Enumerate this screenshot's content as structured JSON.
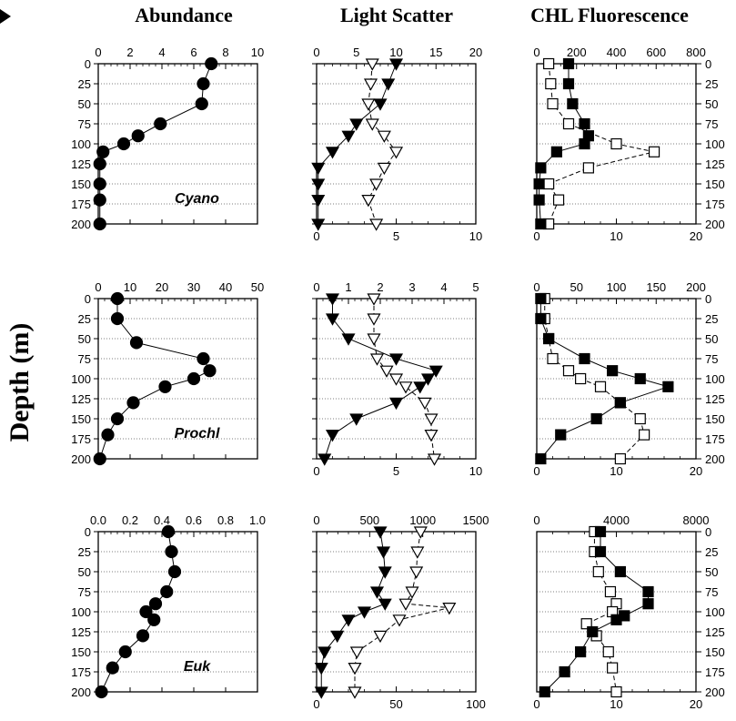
{
  "columns": [
    "Abundance",
    "Light Scatter",
    "CHL Fluorescence"
  ],
  "y_axis_label": "Depth (m)",
  "chart_data": [
    {
      "type": "scatter",
      "row": 0,
      "col": 0,
      "label": "Cyano",
      "xlim_top": [
        0,
        10
      ],
      "xticks_top": [
        "0",
        "2",
        "4",
        "6",
        "8",
        "10"
      ],
      "ylim": [
        200,
        0
      ],
      "yticks": [
        "0",
        "25",
        "50",
        "75",
        "100",
        "125",
        "150",
        "175",
        "200"
      ],
      "series": [
        {
          "marker": "circle-filled",
          "x": [
            7.1,
            6.6,
            6.5,
            3.9,
            2.5,
            1.6,
            0.3,
            0.1,
            0.1,
            0.1,
            0.1
          ],
          "y": [
            0,
            25,
            50,
            75,
            90,
            100,
            110,
            125,
            150,
            170,
            200
          ]
        }
      ]
    },
    {
      "type": "scatter",
      "row": 0,
      "col": 1,
      "xlim_top": [
        0,
        20
      ],
      "xticks_top": [
        "0",
        "5",
        "10",
        "15",
        "20"
      ],
      "xlim_bottom": [
        0,
        10
      ],
      "xticks_bottom": [
        "0",
        "5",
        "10"
      ],
      "ylim": [
        200,
        0
      ],
      "yticks": [
        "0",
        "25",
        "50",
        "75",
        "100",
        "125",
        "150",
        "175",
        "200"
      ],
      "series": [
        {
          "marker": "triangle-open",
          "axis": "top",
          "x": [
            7.0,
            6.8,
            6.5,
            7.0,
            8.5,
            10.0,
            8.5,
            7.5,
            6.5,
            7.5
          ],
          "y": [
            0,
            25,
            50,
            75,
            90,
            110,
            130,
            150,
            170,
            200
          ]
        },
        {
          "marker": "triangle-filled",
          "axis": "bottom",
          "x": [
            5.0,
            4.5,
            4.0,
            2.5,
            2.0,
            1.0,
            0.1,
            0.1,
            0.1,
            0.1
          ],
          "y": [
            0,
            25,
            50,
            75,
            90,
            110,
            130,
            150,
            170,
            200
          ]
        }
      ]
    },
    {
      "type": "scatter",
      "row": 0,
      "col": 2,
      "xlim_top": [
        0,
        800
      ],
      "xticks_top": [
        "0",
        "200",
        "400",
        "600",
        "800"
      ],
      "xlim_bottom": [
        0,
        20
      ],
      "xticks_bottom": [
        "0",
        "10",
        "20"
      ],
      "ylim": [
        200,
        0
      ],
      "yticks": [
        "0",
        "25",
        "50",
        "75",
        "100",
        "125",
        "150",
        "175",
        "200"
      ],
      "series": [
        {
          "marker": "square-open",
          "axis": "top",
          "x": [
            60,
            70,
            80,
            160,
            400,
            590,
            260,
            60,
            110,
            60
          ],
          "y": [
            0,
            25,
            50,
            75,
            100,
            110,
            130,
            150,
            170,
            200
          ]
        },
        {
          "marker": "square-filled",
          "axis": "bottom",
          "x": [
            4.0,
            4.0,
            4.5,
            6.0,
            6.5,
            6.0,
            2.5,
            0.5,
            0.3,
            0.3,
            0.5
          ],
          "y": [
            0,
            25,
            50,
            75,
            90,
            100,
            110,
            130,
            150,
            170,
            200
          ]
        }
      ]
    },
    {
      "type": "scatter",
      "row": 1,
      "col": 0,
      "label": "Prochl",
      "xlim_top": [
        0,
        50
      ],
      "xticks_top": [
        "0",
        "10",
        "20",
        "30",
        "40",
        "50"
      ],
      "ylim": [
        200,
        0
      ],
      "yticks": [
        "0",
        "25",
        "50",
        "75",
        "100",
        "125",
        "150",
        "175",
        "200"
      ],
      "series": [
        {
          "marker": "circle-filled",
          "x": [
            6,
            6,
            12,
            33,
            35,
            30,
            21,
            11,
            6,
            3,
            0.5
          ],
          "y": [
            0,
            25,
            55,
            75,
            90,
            100,
            110,
            130,
            150,
            170,
            200
          ]
        }
      ]
    },
    {
      "type": "scatter",
      "row": 1,
      "col": 1,
      "xlim_top": [
        0,
        5
      ],
      "xticks_top": [
        "0",
        "1",
        "2",
        "3",
        "4",
        "5"
      ],
      "xlim_bottom": [
        0,
        10
      ],
      "xticks_bottom": [
        "0",
        "5",
        "10"
      ],
      "ylim": [
        200,
        0
      ],
      "yticks": [
        "0",
        "25",
        "50",
        "75",
        "100",
        "125",
        "150",
        "175",
        "200"
      ],
      "series": [
        {
          "marker": "triangle-open",
          "axis": "top",
          "x": [
            1.8,
            1.8,
            1.8,
            1.9,
            2.2,
            2.5,
            2.8,
            3.4,
            3.6,
            3.6,
            3.7
          ],
          "y": [
            0,
            25,
            50,
            75,
            90,
            100,
            110,
            130,
            150,
            170,
            200
          ]
        },
        {
          "marker": "triangle-filled",
          "axis": "bottom",
          "x": [
            1.0,
            1.0,
            2.0,
            5.0,
            7.5,
            7.0,
            6.5,
            5.0,
            2.5,
            1.0,
            0.5
          ],
          "y": [
            0,
            25,
            50,
            75,
            90,
            100,
            110,
            130,
            150,
            170,
            200
          ]
        }
      ]
    },
    {
      "type": "scatter",
      "row": 1,
      "col": 2,
      "xlim_top": [
        0,
        200
      ],
      "xticks_top": [
        "0",
        "50",
        "100",
        "150",
        "200"
      ],
      "xlim_bottom": [
        0,
        20
      ],
      "xticks_bottom": [
        "0",
        "10",
        "20"
      ],
      "ylim": [
        200,
        0
      ],
      "yticks": [
        "0",
        "25",
        "50",
        "75",
        "100",
        "125",
        "150",
        "175",
        "200"
      ],
      "series": [
        {
          "marker": "square-open",
          "axis": "top",
          "x": [
            10,
            10,
            15,
            20,
            40,
            55,
            80,
            105,
            130,
            135,
            105
          ],
          "y": [
            0,
            25,
            50,
            75,
            90,
            100,
            110,
            130,
            150,
            170,
            200
          ]
        },
        {
          "marker": "square-filled",
          "axis": "bottom",
          "x": [
            0.5,
            0.5,
            1.5,
            6.0,
            9.5,
            13.0,
            16.5,
            10.5,
            7.5,
            3.0,
            0.5
          ],
          "y": [
            0,
            25,
            50,
            75,
            90,
            100,
            110,
            130,
            150,
            170,
            200
          ]
        }
      ]
    },
    {
      "type": "scatter",
      "row": 2,
      "col": 0,
      "label": "Euk",
      "xlim_top": [
        0,
        1.0
      ],
      "xticks_top": [
        "0.0",
        "0.2",
        "0.4",
        "0.6",
        "0.8",
        "1.0"
      ],
      "ylim": [
        200,
        0
      ],
      "yticks": [
        "0",
        "25",
        "50",
        "75",
        "100",
        "125",
        "150",
        "175",
        "200"
      ],
      "series": [
        {
          "marker": "circle-filled",
          "x": [
            0.44,
            0.46,
            0.48,
            0.43,
            0.36,
            0.3,
            0.35,
            0.28,
            0.17,
            0.09,
            0.02
          ],
          "y": [
            0,
            25,
            50,
            75,
            90,
            100,
            110,
            130,
            150,
            170,
            200
          ]
        }
      ]
    },
    {
      "type": "scatter",
      "row": 2,
      "col": 1,
      "xlim_top": [
        0,
        1500
      ],
      "xticks_top": [
        "0",
        "500",
        "1000",
        "1500"
      ],
      "xlim_bottom": [
        0,
        100
      ],
      "xticks_bottom": [
        "0",
        "50",
        "100"
      ],
      "ylim": [
        200,
        0
      ],
      "yticks": [
        "0",
        "25",
        "50",
        "75",
        "100",
        "125",
        "150",
        "175",
        "200"
      ],
      "series": [
        {
          "marker": "triangle-open",
          "axis": "top",
          "x": [
            980,
            950,
            940,
            900,
            840,
            1250,
            780,
            600,
            380,
            360,
            360
          ],
          "y": [
            0,
            25,
            50,
            75,
            90,
            95,
            110,
            130,
            150,
            170,
            200
          ]
        },
        {
          "marker": "triangle-filled",
          "axis": "bottom",
          "x": [
            40,
            42,
            43,
            38,
            43,
            30,
            20,
            13,
            5,
            3,
            3
          ],
          "y": [
            0,
            25,
            50,
            75,
            90,
            100,
            110,
            130,
            150,
            170,
            200
          ]
        }
      ]
    },
    {
      "type": "scatter",
      "row": 2,
      "col": 2,
      "xlim_top": [
        0,
        8000
      ],
      "xticks_top": [
        "0",
        "4000",
        "8000"
      ],
      "xlim_bottom": [
        0,
        20
      ],
      "xticks_bottom": [
        "0",
        "10",
        "20"
      ],
      "ylim": [
        200,
        0
      ],
      "yticks": [
        "0",
        "25",
        "50",
        "75",
        "100",
        "125",
        "150",
        "175",
        "200"
      ],
      "series": [
        {
          "marker": "square-open",
          "axis": "top",
          "x": [
            2900,
            2900,
            3100,
            3700,
            4000,
            3800,
            2500,
            3000,
            3600,
            3800,
            4000
          ],
          "y": [
            0,
            25,
            50,
            75,
            90,
            100,
            115,
            130,
            150,
            170,
            200
          ]
        },
        {
          "marker": "square-filled",
          "axis": "bottom",
          "x": [
            8.0,
            8.0,
            10.5,
            14.0,
            14.0,
            11.0,
            10.0,
            7.0,
            5.5,
            3.5,
            1.0
          ],
          "y": [
            0,
            25,
            50,
            75,
            90,
            105,
            110,
            125,
            150,
            175,
            200
          ]
        }
      ]
    }
  ]
}
